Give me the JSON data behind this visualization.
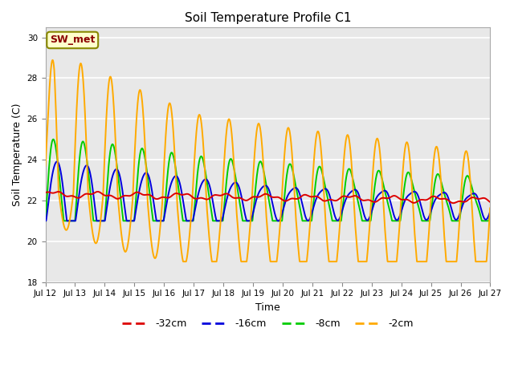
{
  "title": "Soil Temperature Profile C1",
  "xlabel": "Time",
  "ylabel": "Soil Temperature (C)",
  "ylim": [
    18,
    30.5
  ],
  "yticks": [
    18,
    20,
    22,
    24,
    26,
    28,
    30
  ],
  "colors": {
    "-32cm": "#dd0000",
    "-16cm": "#0000dd",
    "-8cm": "#00cc00",
    "-2cm": "#ffaa00"
  },
  "sw_met_label": "SW_met",
  "fig_facecolor": "#ffffff",
  "ax_facecolor": "#e8e8e8",
  "grid_color": "#ffffff",
  "n_days": 15,
  "start_day": 12
}
